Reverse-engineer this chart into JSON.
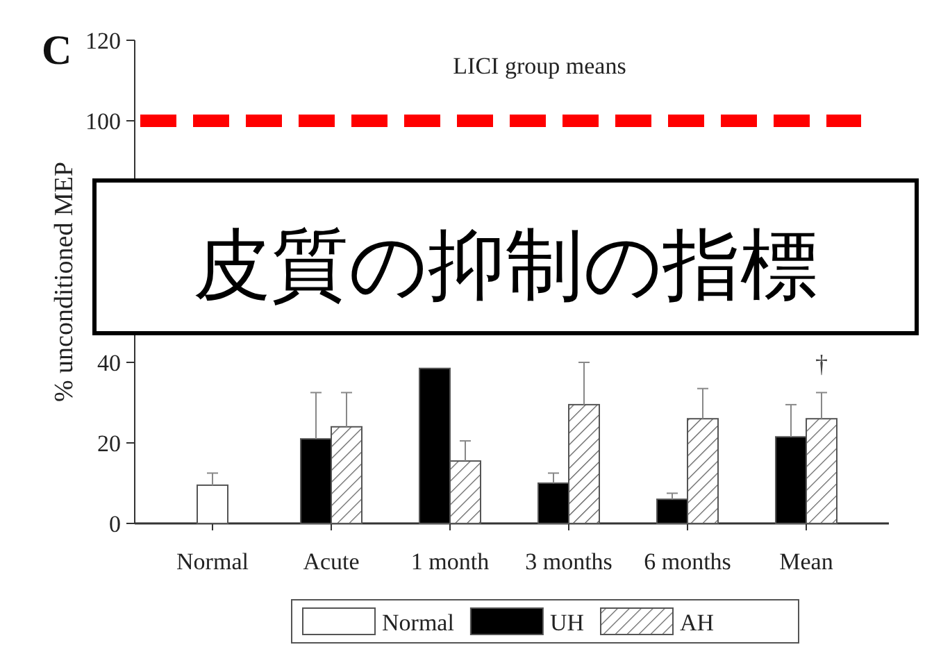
{
  "chart_data": {
    "type": "bar",
    "title": "LICI group means",
    "ylabel": "% unconditioned MEP",
    "categories": [
      "Normal",
      "Acute",
      "1 month",
      "3 months",
      "6 months",
      "Mean"
    ],
    "series": [
      {
        "name": "Normal",
        "color": "#ffffff",
        "values": [
          9.5,
          null,
          null,
          null,
          null,
          null
        ],
        "errors": [
          3,
          null,
          null,
          null,
          null,
          null
        ]
      },
      {
        "name": "UH",
        "color": "#000000",
        "values": [
          null,
          21,
          38.5,
          10,
          6,
          21.5
        ],
        "errors": [
          null,
          11.5,
          null,
          2.5,
          1.5,
          8
        ]
      },
      {
        "name": "AH",
        "color": "#555555",
        "values": [
          null,
          24,
          15.5,
          29.5,
          26,
          26
        ],
        "errors": [
          null,
          8.5,
          5,
          10.5,
          7.5,
          6.5
        ]
      }
    ],
    "ylim": [
      0,
      120
    ],
    "yticks": [
      0,
      20,
      40,
      100,
      120
    ],
    "ref_lines": [
      {
        "axis": "y",
        "value": 100,
        "color": "#ff0000",
        "line_style": "dashed"
      }
    ],
    "annotations": [
      "C",
      "†",
      "皮質の抑制の指標"
    ],
    "legend": "bottom",
    "grid": false
  }
}
